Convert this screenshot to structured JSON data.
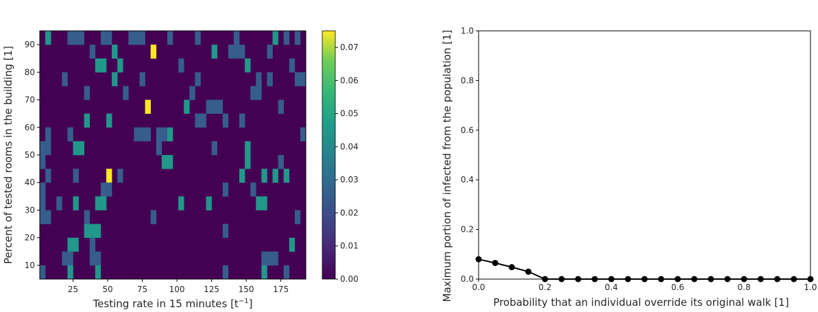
{
  "chart_data": [
    {
      "type": "heatmap",
      "xlabel": "Testing rate in 15 minutes [t",
      "xlabel_sup": "−1",
      "xlabel_end": "]",
      "ylabel": "Percent of tested rooms in the building [1]",
      "xlim": [
        1,
        193
      ],
      "ylim": [
        5,
        95
      ],
      "x_ticks": [
        25,
        50,
        75,
        100,
        125,
        150,
        175
      ],
      "y_ticks": [
        10,
        20,
        30,
        40,
        50,
        60,
        70,
        80,
        90
      ],
      "x_tick_labels": [
        "25",
        "50",
        "75",
        "100",
        "125",
        "150",
        "175"
      ],
      "y_tick_labels": [
        "10",
        "20",
        "30",
        "40",
        "50",
        "60",
        "70",
        "80",
        "90"
      ],
      "grid_columns": 48,
      "grid_rows": 18,
      "colorscale": "viridis",
      "colorbar": {
        "range": [
          0.0,
          0.075
        ],
        "ticks": [
          0.0,
          0.01,
          0.02,
          0.03,
          0.04,
          0.05,
          0.06,
          0.07
        ],
        "tick_labels": [
          "0.00",
          "0.01",
          "0.02",
          "0.03",
          "0.04",
          "0.05",
          "0.06",
          "0.07"
        ]
      },
      "cells": [
        {
          "x": 5,
          "y": 92.5,
          "v": 0.045
        },
        {
          "x": 21,
          "y": 92.5,
          "v": 0.025
        },
        {
          "x": 25,
          "y": 92.5,
          "v": 0.025
        },
        {
          "x": 29,
          "y": 92.5,
          "v": 0.025
        },
        {
          "x": 45,
          "y": 92.5,
          "v": 0.025
        },
        {
          "x": 49,
          "y": 92.5,
          "v": 0.025
        },
        {
          "x": 65,
          "y": 92.5,
          "v": 0.025
        },
        {
          "x": 69,
          "y": 92.5,
          "v": 0.025
        },
        {
          "x": 73,
          "y": 92.5,
          "v": 0.025
        },
        {
          "x": 93,
          "y": 92.5,
          "v": 0.025
        },
        {
          "x": 113,
          "y": 92.5,
          "v": 0.025
        },
        {
          "x": 141,
          "y": 92.5,
          "v": 0.025
        },
        {
          "x": 169,
          "y": 92.5,
          "v": 0.045
        },
        {
          "x": 177,
          "y": 92.5,
          "v": 0.025
        },
        {
          "x": 185,
          "y": 92.5,
          "v": 0.025
        },
        {
          "x": 37,
          "y": 87.5,
          "v": 0.025
        },
        {
          "x": 53,
          "y": 87.5,
          "v": 0.045
        },
        {
          "x": 81,
          "y": 87.5,
          "v": 0.075
        },
        {
          "x": 125,
          "y": 87.5,
          "v": 0.045
        },
        {
          "x": 137,
          "y": 87.5,
          "v": 0.025
        },
        {
          "x": 141,
          "y": 87.5,
          "v": 0.025
        },
        {
          "x": 145,
          "y": 87.5,
          "v": 0.025
        },
        {
          "x": 165,
          "y": 87.5,
          "v": 0.025
        },
        {
          "x": 41,
          "y": 82.5,
          "v": 0.045
        },
        {
          "x": 45,
          "y": 82.5,
          "v": 0.045
        },
        {
          "x": 57,
          "y": 82.5,
          "v": 0.045
        },
        {
          "x": 101,
          "y": 82.5,
          "v": 0.025
        },
        {
          "x": 149,
          "y": 82.5,
          "v": 0.045
        },
        {
          "x": 181,
          "y": 82.5,
          "v": 0.025
        },
        {
          "x": 17,
          "y": 77.5,
          "v": 0.025
        },
        {
          "x": 53,
          "y": 77.5,
          "v": 0.045
        },
        {
          "x": 73,
          "y": 77.5,
          "v": 0.025
        },
        {
          "x": 113,
          "y": 77.5,
          "v": 0.025
        },
        {
          "x": 157,
          "y": 77.5,
          "v": 0.025
        },
        {
          "x": 165,
          "y": 77.5,
          "v": 0.025
        },
        {
          "x": 185,
          "y": 77.5,
          "v": 0.025
        },
        {
          "x": 189,
          "y": 77.5,
          "v": 0.025
        },
        {
          "x": 33,
          "y": 72.5,
          "v": 0.025
        },
        {
          "x": 61,
          "y": 72.5,
          "v": 0.025
        },
        {
          "x": 109,
          "y": 72.5,
          "v": 0.025
        },
        {
          "x": 153,
          "y": 72.5,
          "v": 0.025
        },
        {
          "x": 157,
          "y": 72.5,
          "v": 0.025
        },
        {
          "x": 77,
          "y": 67.5,
          "v": 0.075
        },
        {
          "x": 105,
          "y": 67.5,
          "v": 0.045
        },
        {
          "x": 121,
          "y": 67.5,
          "v": 0.025
        },
        {
          "x": 125,
          "y": 67.5,
          "v": 0.025
        },
        {
          "x": 129,
          "y": 67.5,
          "v": 0.025
        },
        {
          "x": 173,
          "y": 67.5,
          "v": 0.025
        },
        {
          "x": 33,
          "y": 62.5,
          "v": 0.045
        },
        {
          "x": 49,
          "y": 62.5,
          "v": 0.045
        },
        {
          "x": 113,
          "y": 62.5,
          "v": 0.025
        },
        {
          "x": 117,
          "y": 62.5,
          "v": 0.025
        },
        {
          "x": 133,
          "y": 62.5,
          "v": 0.025
        },
        {
          "x": 145,
          "y": 62.5,
          "v": 0.025
        },
        {
          "x": 5,
          "y": 57.5,
          "v": 0.025
        },
        {
          "x": 21,
          "y": 57.5,
          "v": 0.025
        },
        {
          "x": 69,
          "y": 57.5,
          "v": 0.025
        },
        {
          "x": 73,
          "y": 57.5,
          "v": 0.025
        },
        {
          "x": 77,
          "y": 57.5,
          "v": 0.025
        },
        {
          "x": 85,
          "y": 57.5,
          "v": 0.025
        },
        {
          "x": 89,
          "y": 57.5,
          "v": 0.025
        },
        {
          "x": 93,
          "y": 57.5,
          "v": 0.045
        },
        {
          "x": 189,
          "y": 57.5,
          "v": 0.025
        },
        {
          "x": 1,
          "y": 52.5,
          "v": 0.025
        },
        {
          "x": 5,
          "y": 52.5,
          "v": 0.025
        },
        {
          "x": 25,
          "y": 52.5,
          "v": 0.045
        },
        {
          "x": 29,
          "y": 52.5,
          "v": 0.045
        },
        {
          "x": 85,
          "y": 52.5,
          "v": 0.025
        },
        {
          "x": 125,
          "y": 52.5,
          "v": 0.025
        },
        {
          "x": 149,
          "y": 52.5,
          "v": 0.045
        },
        {
          "x": 1,
          "y": 47.5,
          "v": 0.025
        },
        {
          "x": 89,
          "y": 47.5,
          "v": 0.045
        },
        {
          "x": 93,
          "y": 47.5,
          "v": 0.045
        },
        {
          "x": 149,
          "y": 47.5,
          "v": 0.045
        },
        {
          "x": 173,
          "y": 47.5,
          "v": 0.025
        },
        {
          "x": 5,
          "y": 42.5,
          "v": 0.025
        },
        {
          "x": 25,
          "y": 42.5,
          "v": 0.025
        },
        {
          "x": 49,
          "y": 42.5,
          "v": 0.075
        },
        {
          "x": 57,
          "y": 42.5,
          "v": 0.025
        },
        {
          "x": 145,
          "y": 42.5,
          "v": 0.045
        },
        {
          "x": 161,
          "y": 42.5,
          "v": 0.045
        },
        {
          "x": 169,
          "y": 42.5,
          "v": 0.045
        },
        {
          "x": 177,
          "y": 42.5,
          "v": 0.045
        },
        {
          "x": 1,
          "y": 37.5,
          "v": 0.025
        },
        {
          "x": 45,
          "y": 37.5,
          "v": 0.025
        },
        {
          "x": 49,
          "y": 37.5,
          "v": 0.025
        },
        {
          "x": 133,
          "y": 37.5,
          "v": 0.025
        },
        {
          "x": 153,
          "y": 37.5,
          "v": 0.025
        },
        {
          "x": 1,
          "y": 32.5,
          "v": 0.025
        },
        {
          "x": 13,
          "y": 32.5,
          "v": 0.025
        },
        {
          "x": 25,
          "y": 32.5,
          "v": 0.045
        },
        {
          "x": 41,
          "y": 32.5,
          "v": 0.045
        },
        {
          "x": 45,
          "y": 32.5,
          "v": 0.045
        },
        {
          "x": 101,
          "y": 32.5,
          "v": 0.045
        },
        {
          "x": 121,
          "y": 32.5,
          "v": 0.045
        },
        {
          "x": 157,
          "y": 32.5,
          "v": 0.045
        },
        {
          "x": 161,
          "y": 32.5,
          "v": 0.045
        },
        {
          "x": 1,
          "y": 27.5,
          "v": 0.025
        },
        {
          "x": 5,
          "y": 27.5,
          "v": 0.025
        },
        {
          "x": 33,
          "y": 27.5,
          "v": 0.025
        },
        {
          "x": 81,
          "y": 27.5,
          "v": 0.025
        },
        {
          "x": 185,
          "y": 27.5,
          "v": 0.025
        },
        {
          "x": 33,
          "y": 22.5,
          "v": 0.045
        },
        {
          "x": 37,
          "y": 22.5,
          "v": 0.045
        },
        {
          "x": 41,
          "y": 22.5,
          "v": 0.045
        },
        {
          "x": 133,
          "y": 22.5,
          "v": 0.025
        },
        {
          "x": 21,
          "y": 17.5,
          "v": 0.045
        },
        {
          "x": 25,
          "y": 17.5,
          "v": 0.045
        },
        {
          "x": 37,
          "y": 17.5,
          "v": 0.025
        },
        {
          "x": 181,
          "y": 17.5,
          "v": 0.045
        },
        {
          "x": 17,
          "y": 12.5,
          "v": 0.025
        },
        {
          "x": 21,
          "y": 12.5,
          "v": 0.025
        },
        {
          "x": 37,
          "y": 12.5,
          "v": 0.025
        },
        {
          "x": 41,
          "y": 12.5,
          "v": 0.025
        },
        {
          "x": 161,
          "y": 12.5,
          "v": 0.025
        },
        {
          "x": 165,
          "y": 12.5,
          "v": 0.025
        },
        {
          "x": 169,
          "y": 12.5,
          "v": 0.025
        },
        {
          "x": 1,
          "y": 7.5,
          "v": 0.025
        },
        {
          "x": 21,
          "y": 7.5,
          "v": 0.045
        },
        {
          "x": 41,
          "y": 7.5,
          "v": 0.045
        },
        {
          "x": 133,
          "y": 7.5,
          "v": 0.025
        },
        {
          "x": 161,
          "y": 7.5,
          "v": 0.045
        },
        {
          "x": 177,
          "y": 7.5,
          "v": 0.025
        }
      ]
    },
    {
      "type": "line",
      "xlabel": "Probability that an individual override its original walk [1]",
      "ylabel": "Maximum portion of infected from the population [1]",
      "xlim": [
        0.0,
        1.0
      ],
      "ylim": [
        0.0,
        1.0
      ],
      "x_ticks": [
        0.0,
        0.2,
        0.4,
        0.6,
        0.8,
        1.0
      ],
      "y_ticks": [
        0.0,
        0.2,
        0.4,
        0.6,
        0.8,
        1.0
      ],
      "x_tick_labels": [
        "0.0",
        "0.2",
        "0.4",
        "0.6",
        "0.8",
        "1.0"
      ],
      "y_tick_labels": [
        "0.0",
        "0.2",
        "0.4",
        "0.6",
        "0.8",
        "1.0"
      ],
      "line_color": "#000000",
      "x": [
        0.0,
        0.05,
        0.1,
        0.15,
        0.2,
        0.25,
        0.3,
        0.35,
        0.4,
        0.45,
        0.5,
        0.55,
        0.6,
        0.65,
        0.7,
        0.75,
        0.8,
        0.85,
        0.9,
        0.95,
        1.0
      ],
      "y": [
        0.08,
        0.065,
        0.048,
        0.03,
        0.0,
        0.0,
        0.0,
        0.0,
        0.0,
        0.0,
        0.0,
        0.0,
        0.0,
        0.0,
        0.0,
        0.0,
        0.0,
        0.0,
        0.0,
        0.0,
        0.0
      ]
    }
  ]
}
